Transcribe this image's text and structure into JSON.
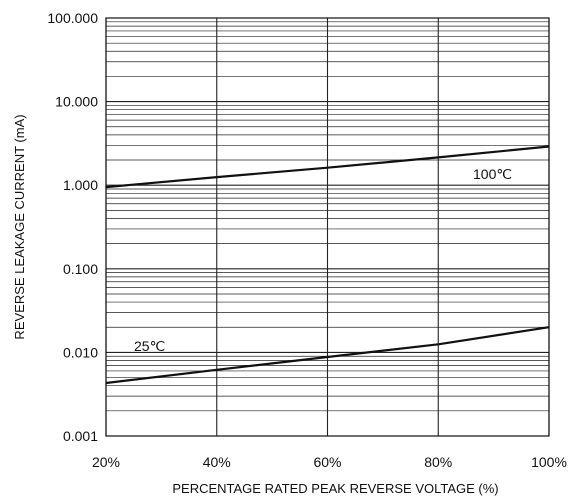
{
  "chart_data": {
    "type": "line",
    "xlabel": "PERCENTAGE RATED PEAK REVERSE VOLTAGE (%)",
    "ylabel": "REVERSE LEAKAGE CURRENT (mA)",
    "x_ticks": [
      {
        "value": 20,
        "label": "20%"
      },
      {
        "value": 40,
        "label": "40%"
      },
      {
        "value": 60,
        "label": "60%"
      },
      {
        "value": 80,
        "label": "80%"
      },
      {
        "value": 100,
        "label": "100%"
      }
    ],
    "y_ticks": [
      {
        "value": 0.001,
        "label": "0.001"
      },
      {
        "value": 0.01,
        "label": "0.010"
      },
      {
        "value": 0.1,
        "label": "0.100"
      },
      {
        "value": 1,
        "label": "1.000"
      },
      {
        "value": 10,
        "label": "10.000"
      },
      {
        "value": 100,
        "label": "100.000"
      }
    ],
    "xlim": [
      20,
      100
    ],
    "ylim": [
      0.001,
      100
    ],
    "y_scale": "log",
    "grid": true,
    "series": [
      {
        "name": "100℃",
        "x": [
          20,
          40,
          60,
          80,
          100
        ],
        "y": [
          0.95,
          1.25,
          1.62,
          2.15,
          2.9
        ]
      },
      {
        "name": "25℃",
        "x": [
          20,
          40,
          60,
          80,
          100
        ],
        "y": [
          0.0043,
          0.0062,
          0.0088,
          0.0125,
          0.02
        ]
      }
    ],
    "colors": {
      "line": "#111111",
      "grid": "#222222",
      "background": "#ffffff"
    }
  }
}
